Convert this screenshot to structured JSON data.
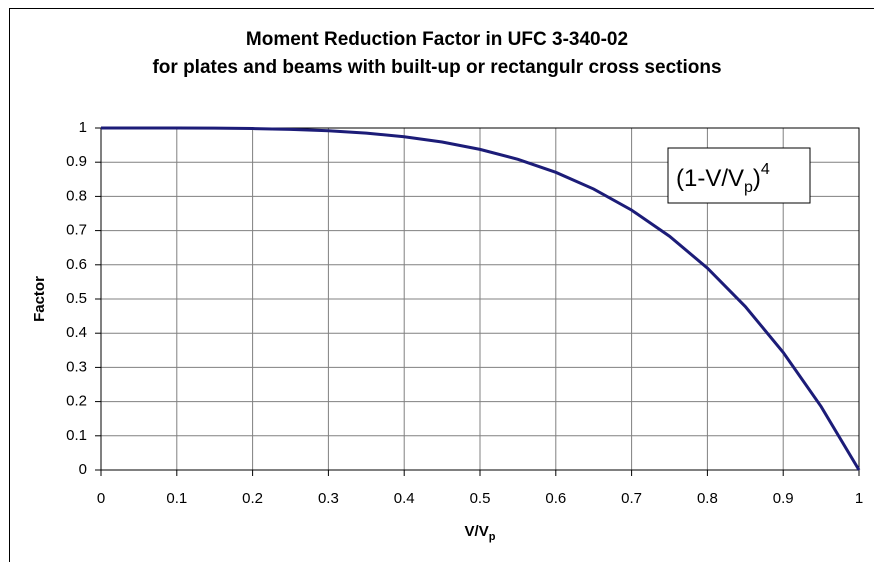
{
  "chart_data": {
    "type": "line",
    "title": [
      "Moment Reduction Factor in UFC 3-340-02",
      "for plates and beams with built-up or rectangulr cross sections"
    ],
    "y_label": "Factor",
    "x_label": {
      "text": "V/V",
      "sub": "p"
    },
    "annotation": {
      "text": "(1-V/V",
      "sub": "p",
      "after": ")",
      "sup": "4"
    },
    "x": [
      0,
      0.05,
      0.1,
      0.15,
      0.2,
      0.25,
      0.3,
      0.35,
      0.4,
      0.45,
      0.5,
      0.55,
      0.6,
      0.65,
      0.7,
      0.75,
      0.8,
      0.85,
      0.9,
      0.95,
      1
    ],
    "series": [
      {
        "color": "#1c1c78",
        "values": [
          1,
          1,
          0.9999,
          0.9995,
          0.9984,
          0.9961,
          0.9919,
          0.985,
          0.9744,
          0.959,
          0.9375,
          0.9085,
          0.8704,
          0.8215,
          0.7599,
          0.6836,
          0.5904,
          0.478,
          0.3439,
          0.1855,
          0
        ]
      }
    ],
    "xlim": [
      0,
      1
    ],
    "xticks": [
      0,
      0.1,
      0.2,
      0.3,
      0.4,
      0.5,
      0.6,
      0.7,
      0.8,
      0.9,
      1
    ],
    "ylim": [
      0,
      1
    ],
    "yticks": [
      0,
      0.1,
      0.2,
      0.3,
      0.4,
      0.5,
      0.6,
      0.7,
      0.8,
      0.9,
      1
    ],
    "grid": true
  }
}
